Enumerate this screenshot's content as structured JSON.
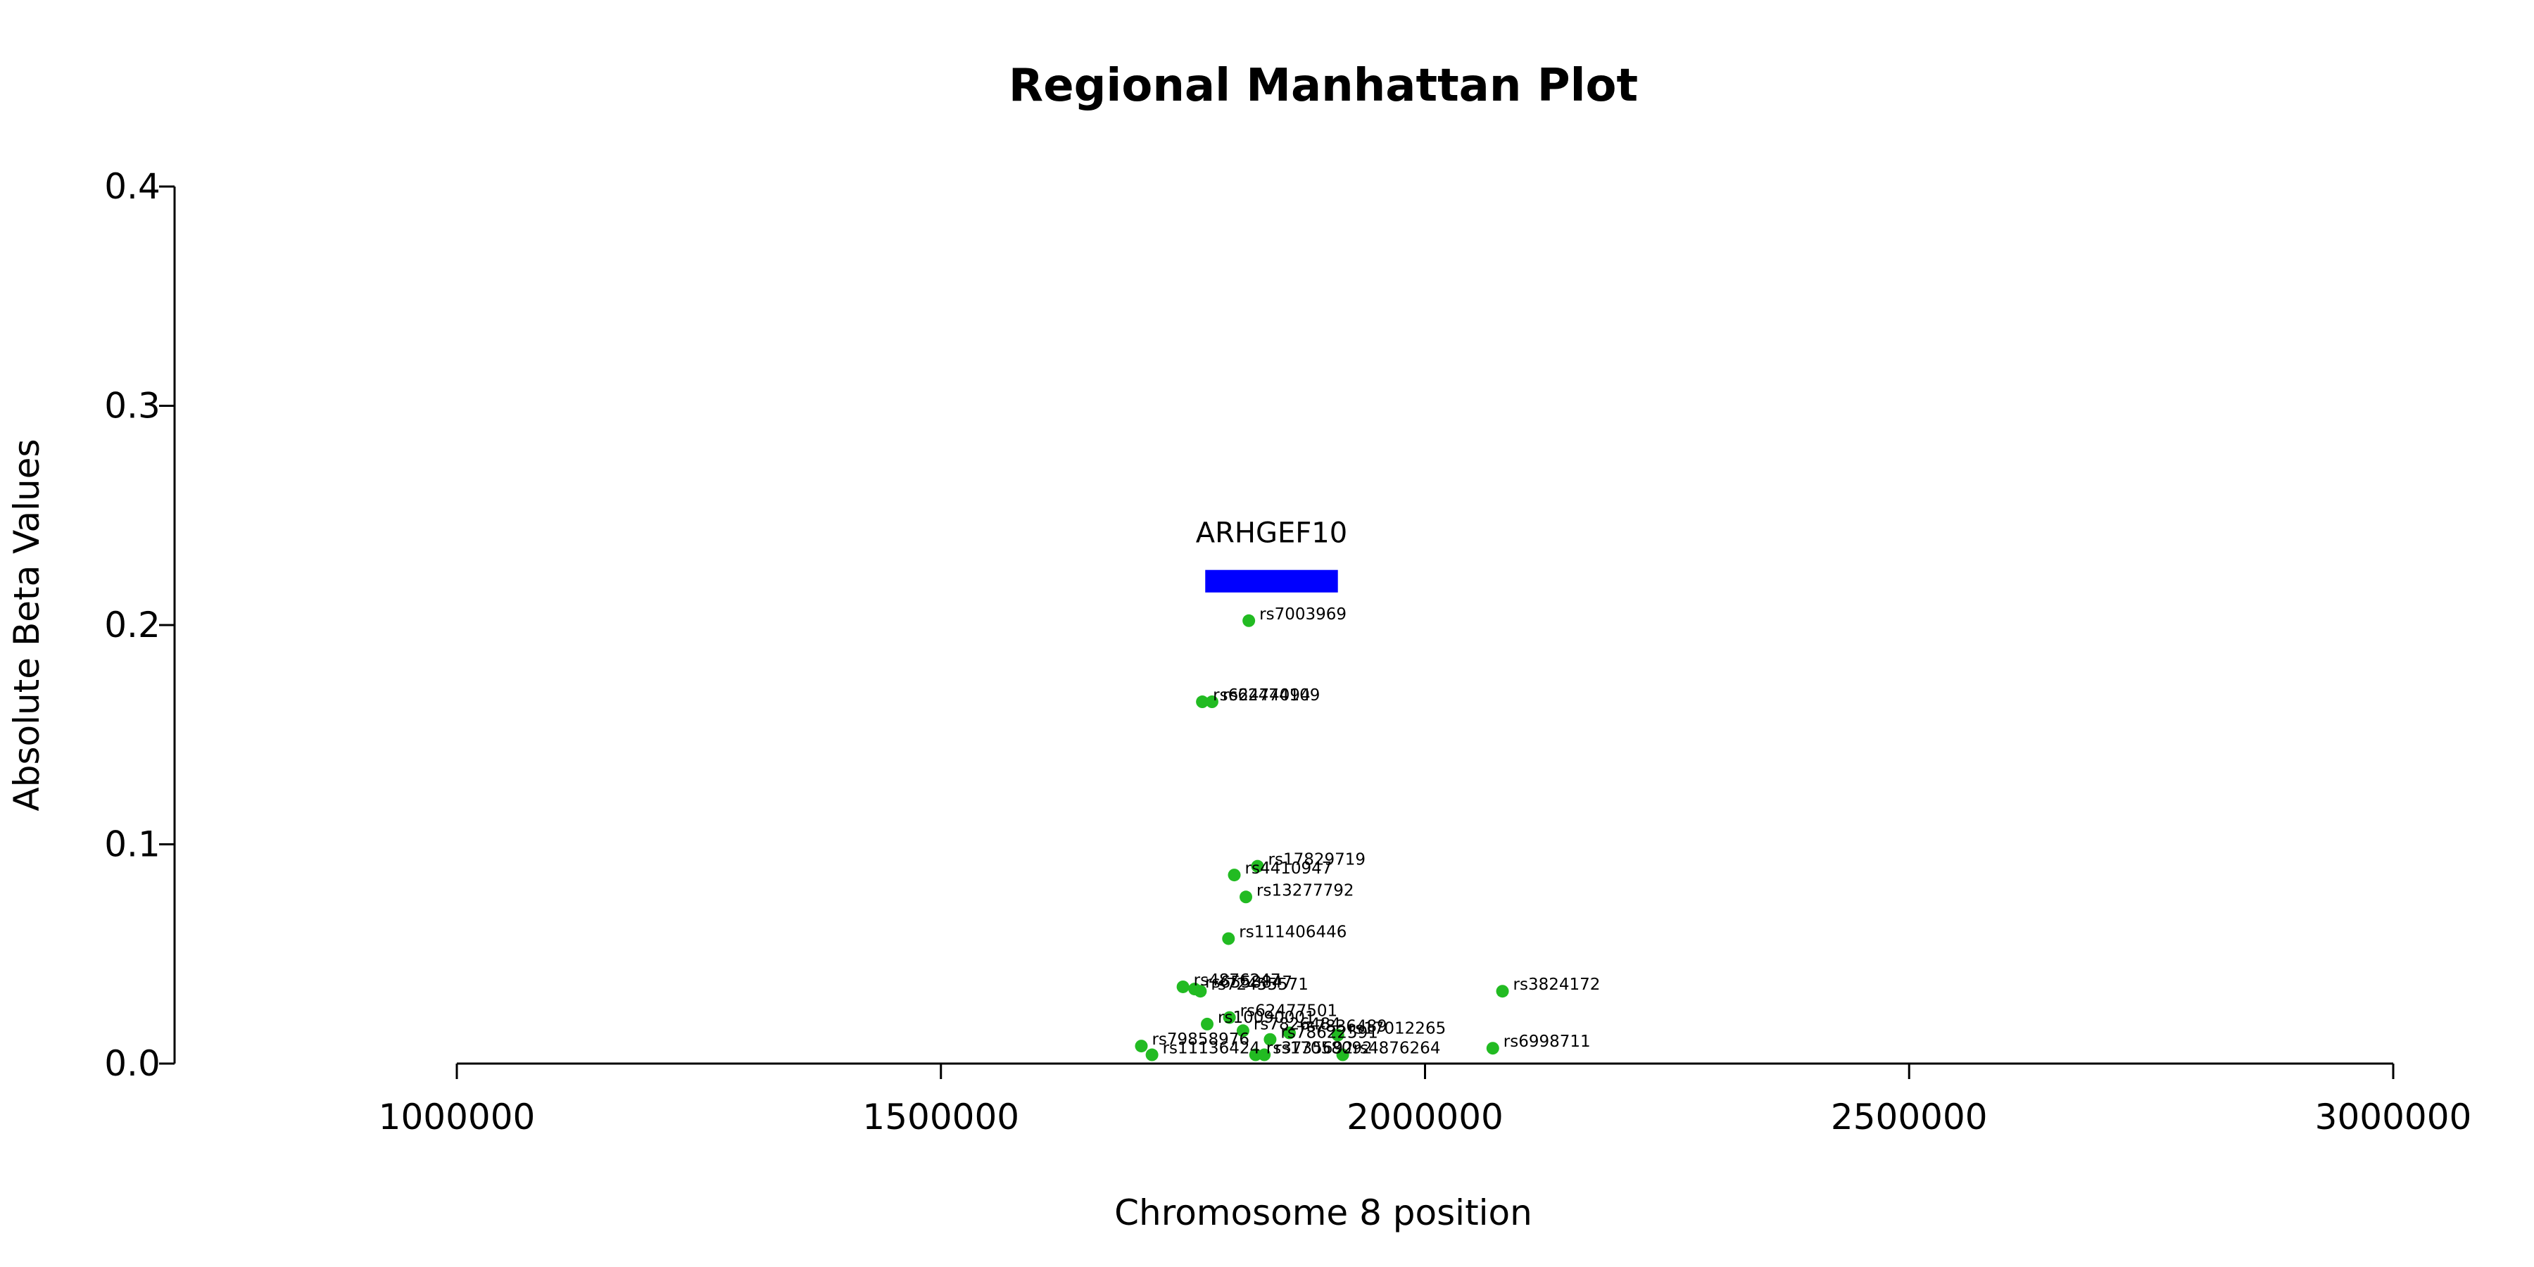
{
  "chart_data": {
    "type": "scatter",
    "title": "Regional Manhattan Plot",
    "xlabel": "Chromosome 8 position",
    "ylabel": "Absolute Beta Values",
    "xlim": [
      1000000,
      3000000
    ],
    "ylim": [
      0,
      0.4
    ],
    "xticks": [
      1000000,
      1500000,
      2000000,
      2500000,
      3000000
    ],
    "xtick_labels": [
      "1000000",
      "1500000",
      "2000000",
      "2500000",
      "3000000"
    ],
    "yticks": [
      0,
      0.1,
      0.2,
      0.3,
      0.4
    ],
    "ytick_labels": [
      "0.0",
      "0.1",
      "0.2",
      "0.3",
      "0.4"
    ],
    "grid": false,
    "point_color": "#22bb22",
    "gene_color": "#0000ff",
    "genes": [
      {
        "name": "ARHGEF10",
        "start": 1773000,
        "end": 1910000,
        "y": 0.22
      }
    ],
    "points": [
      {
        "label": "rs7003969",
        "x": 1818000,
        "y": 0.202
      },
      {
        "label": "rs62474094",
        "x": 1770000,
        "y": 0.165
      },
      {
        "label": "rs62474109",
        "x": 1780000,
        "y": 0.165
      },
      {
        "label": "rs17829719",
        "x": 1827000,
        "y": 0.09
      },
      {
        "label": "rs4410947",
        "x": 1803000,
        "y": 0.086
      },
      {
        "label": "rs13277792",
        "x": 1815000,
        "y": 0.076
      },
      {
        "label": "rs111406446",
        "x": 1797000,
        "y": 0.057
      },
      {
        "label": "rs4876247",
        "x": 1750000,
        "y": 0.035
      },
      {
        "label": "rs6558847",
        "x": 1762000,
        "y": 0.034
      },
      {
        "label": "rs72455571",
        "x": 1768000,
        "y": 0.033
      },
      {
        "label": "rs3824172",
        "x": 2080000,
        "y": 0.033
      },
      {
        "label": "rs62477501",
        "x": 1798000,
        "y": 0.021
      },
      {
        "label": "rs10090001",
        "x": 1775000,
        "y": 0.018
      },
      {
        "label": "rs7826484",
        "x": 1812000,
        "y": 0.015
      },
      {
        "label": "rs79858976",
        "x": 1707000,
        "y": 0.008
      },
      {
        "label": "rs7836489",
        "x": 1860000,
        "y": 0.014
      },
      {
        "label": "rs17012265",
        "x": 1910000,
        "y": 0.013
      },
      {
        "label": "rs78622591",
        "x": 1840000,
        "y": 0.011
      },
      {
        "label": "rs6998711",
        "x": 2070000,
        "y": 0.007
      },
      {
        "label": "rs11136424",
        "x": 1718000,
        "y": 0.004
      },
      {
        "label": "rs3735692",
        "x": 1825000,
        "y": 0.004
      },
      {
        "label": "rs17058092",
        "x": 1834000,
        "y": 0.004
      },
      {
        "label": "rs4876264",
        "x": 1915000,
        "y": 0.004
      }
    ]
  }
}
